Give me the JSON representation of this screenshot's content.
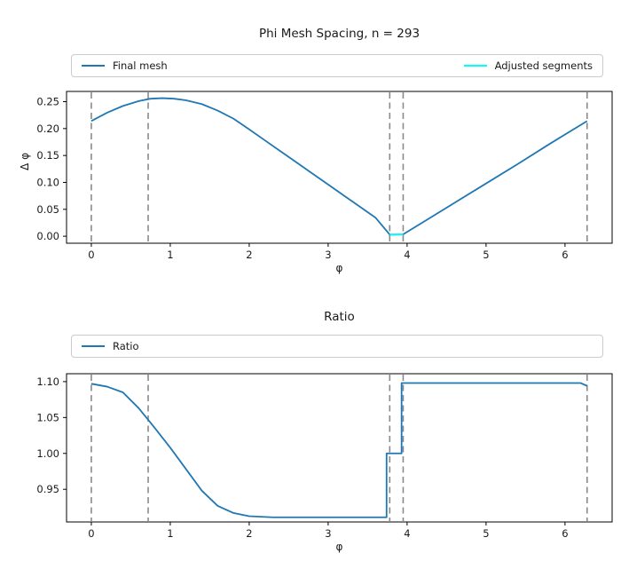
{
  "colors": {
    "line_blue": "#1f77b4",
    "adjusted_cyan": "#00ffff",
    "dashed_gray": "#8a8a8a",
    "background": "#ffffff",
    "legend_border": "#cccccc"
  },
  "chart_data": [
    {
      "type": "line",
      "title": "Phi Mesh Spacing, n = 293",
      "xlabel": "φ",
      "ylabel": "Δ φ",
      "xlim": [
        -0.314,
        6.597
      ],
      "ylim": [
        -0.013,
        0.269
      ],
      "xticks": [
        0,
        1,
        2,
        3,
        4,
        5,
        6
      ],
      "xtick_labels": [
        "0",
        "1",
        "2",
        "3",
        "4",
        "5",
        "6"
      ],
      "yticks": [
        0,
        0.05,
        0.1,
        0.15,
        0.2,
        0.25
      ],
      "ytick_labels": [
        "0.00",
        "0.05",
        "0.10",
        "0.15",
        "0.20",
        "0.25"
      ],
      "grid": false,
      "legend": {
        "position": "above plot, full-width box, entries left and right",
        "entries": [
          "Final mesh",
          "Adjusted segments"
        ]
      },
      "vlines": {
        "x": [
          0,
          0.72,
          3.78,
          3.95,
          6.28
        ],
        "style": "dashed",
        "color": "#8a8a8a"
      },
      "series": [
        {
          "name": "Final mesh",
          "color": "#1f77b4",
          "x": [
            0,
            0.2,
            0.4,
            0.6,
            0.75,
            0.9,
            1.05,
            1.2,
            1.4,
            1.6,
            1.8,
            2.0,
            2.2,
            2.4,
            2.6,
            2.8,
            3.0,
            3.2,
            3.4,
            3.6,
            3.78,
            3.95,
            4.2,
            4.6,
            5.0,
            5.4,
            5.8,
            6.28
          ],
          "y": [
            0.214,
            0.2295,
            0.242,
            0.251,
            0.2555,
            0.2565,
            0.2555,
            0.2525,
            0.2455,
            0.2335,
            0.2185,
            0.1985,
            0.178,
            0.1575,
            0.137,
            0.1165,
            0.096,
            0.0755,
            0.055,
            0.0345,
            0.003,
            0.0035,
            0.026,
            0.062,
            0.098,
            0.134,
            0.171,
            0.214
          ]
        },
        {
          "name": "Adjusted segments",
          "color": "#00ffff",
          "x": [
            3.78,
            3.95
          ],
          "y": [
            0.003,
            0.003
          ]
        }
      ]
    },
    {
      "type": "line",
      "title": "Ratio",
      "xlabel": "φ",
      "ylabel": "",
      "xlim": [
        -0.314,
        6.597
      ],
      "ylim": [
        0.9045,
        1.111
      ],
      "xticks": [
        0,
        1,
        2,
        3,
        4,
        5,
        6
      ],
      "xtick_labels": [
        "0",
        "1",
        "2",
        "3",
        "4",
        "5",
        "6"
      ],
      "yticks": [
        0.95,
        1.0,
        1.05,
        1.1
      ],
      "ytick_labels": [
        "0.95",
        "1.00",
        "1.05",
        "1.10"
      ],
      "grid": false,
      "legend": {
        "position": "above plot, full-width box, entry left",
        "entries": [
          "Ratio"
        ]
      },
      "vlines": {
        "x": [
          0,
          0.72,
          3.78,
          3.95,
          6.28
        ],
        "style": "dashed",
        "color": "#8a8a8a"
      },
      "series": [
        {
          "name": "Ratio",
          "color": "#1f77b4",
          "x": [
            0,
            0.2,
            0.4,
            0.6,
            0.8,
            1.0,
            1.2,
            1.4,
            1.6,
            1.8,
            2.0,
            2.3,
            3.0,
            3.74,
            3.74,
            3.93,
            3.93,
            6.2,
            6.28
          ],
          "y": [
            1.097,
            1.093,
            1.085,
            1.063,
            1.036,
            1.008,
            0.978,
            0.948,
            0.927,
            0.917,
            0.9125,
            0.911,
            0.911,
            0.911,
            1.0,
            1.0,
            1.098,
            1.098,
            1.094
          ]
        }
      ]
    }
  ]
}
